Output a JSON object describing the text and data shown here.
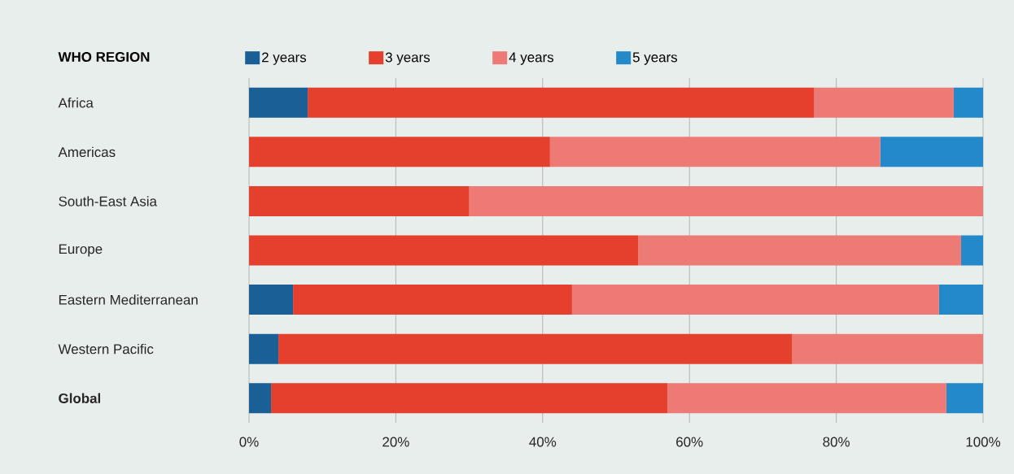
{
  "chart_data": {
    "type": "bar",
    "orientation": "horizontal",
    "stacked": true,
    "legend_title": "WHO REGION",
    "legend": "top",
    "categories": [
      "Africa",
      "Americas",
      "South-East Asia",
      "Europe",
      "Eastern Mediterranean",
      "Western Pacific",
      "Global"
    ],
    "series": [
      {
        "name": "2 years",
        "color": "#1a5f96",
        "values": [
          8,
          0,
          0,
          0,
          6,
          4,
          3
        ]
      },
      {
        "name": "3 years",
        "color": "#e5402e",
        "values": [
          69,
          41,
          30,
          53,
          38,
          70,
          54
        ]
      },
      {
        "name": "4 years",
        "color": "#ee7a76",
        "values": [
          19,
          45,
          70,
          44,
          50,
          26,
          38
        ]
      },
      {
        "name": "5 years",
        "color": "#2389c9",
        "values": [
          4,
          14,
          0,
          3,
          6,
          0,
          5
        ]
      }
    ],
    "xlim": [
      0,
      100
    ],
    "xticks": [
      {
        "value": 0,
        "label": "0%"
      },
      {
        "value": 20,
        "label": "20%"
      },
      {
        "value": 40,
        "label": "40%"
      },
      {
        "value": 60,
        "label": "60%"
      },
      {
        "value": 80,
        "label": "80%"
      },
      {
        "value": 100,
        "label": "100%"
      }
    ],
    "grid": "x"
  }
}
